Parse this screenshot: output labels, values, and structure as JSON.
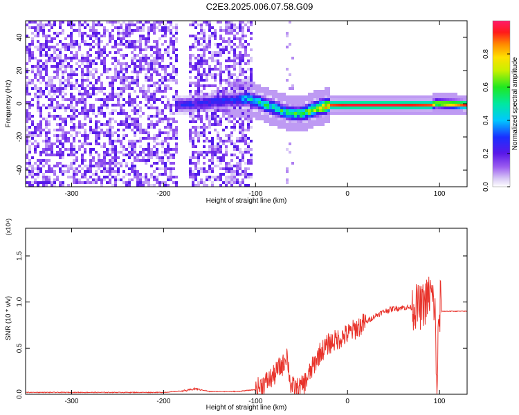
{
  "title": "C2E3.2025.006.07.58.G09",
  "chart_data": [
    {
      "type": "heatmap",
      "xlabel": "Height of straight line (km)",
      "ylabel": "Frequency (Hz)",
      "xlim": [
        -350,
        130
      ],
      "ylim": [
        -50,
        50
      ],
      "xticks": [
        -300,
        -200,
        -100,
        0,
        100
      ],
      "yticks": [
        -40,
        -20,
        0,
        20,
        40
      ],
      "colorbar": {
        "label": "Normalized spectral amplitude",
        "range": [
          0.0,
          1.0
        ],
        "ticks": [
          0.0,
          0.2,
          0.4,
          0.6,
          0.8
        ],
        "tick_labels": [
          "0.0",
          "0.2",
          "0.4",
          "0.6",
          "0.8"
        ]
      },
      "regions": [
        {
          "x": [
            -350,
            -105
          ],
          "y": [
            -50,
            50
          ],
          "amplitude": 0.15,
          "note": "broadband noise"
        },
        {
          "x": [
            -185,
            -175
          ],
          "y": [
            -50,
            50
          ],
          "amplitude": 0.0,
          "note": "gap"
        },
        {
          "x": [
            -70,
            -60
          ],
          "y": [
            -50,
            50
          ],
          "amplitude": 0.1,
          "note": "sparse band"
        }
      ],
      "signal_track": [
        {
          "x": -180,
          "f": 0,
          "amplitude": 0.25
        },
        {
          "x": -125,
          "f": 3,
          "amplitude": 0.3
        },
        {
          "x": -110,
          "f": 4,
          "amplitude": 0.45
        },
        {
          "x": -95,
          "f": 1,
          "amplitude": 0.5
        },
        {
          "x": -80,
          "f": -2,
          "amplitude": 0.55
        },
        {
          "x": -65,
          "f": -5,
          "amplitude": 0.5
        },
        {
          "x": -50,
          "f": -5,
          "amplitude": 0.6
        },
        {
          "x": -35,
          "f": -2,
          "amplitude": 0.75
        },
        {
          "x": -20,
          "f": 0,
          "amplitude": 0.9
        },
        {
          "x": 0,
          "f": 0,
          "amplitude": 0.95
        },
        {
          "x": 50,
          "f": 0,
          "amplitude": 0.95
        },
        {
          "x": 90,
          "f": 0,
          "amplitude": 0.9
        },
        {
          "x": 95,
          "f": 1,
          "amplitude": 0.7
        },
        {
          "x": 130,
          "f": 0,
          "amplitude": 0.95
        }
      ]
    },
    {
      "type": "line",
      "xlabel": "Height of straight line (km)",
      "ylabel": "SNR (10 * v/v)",
      "y_multiplier": "(x10⁴)",
      "xlim": [
        -350,
        130
      ],
      "ylim": [
        0.0,
        1.8
      ],
      "xticks": [
        -300,
        -200,
        -100,
        0,
        100
      ],
      "yticks": [
        0.0,
        0.5,
        1.0,
        1.5
      ],
      "ytick_labels": [
        "0.0",
        "0.5",
        "1.0",
        "1.5"
      ],
      "line_color": "#e8322a",
      "series": [
        {
          "x": [
            -350,
            -300,
            -250,
            -200,
            -175,
            -165,
            -150,
            -120,
            -100,
            -90,
            -80,
            -75,
            -70,
            -66,
            -62,
            -60,
            -55,
            -50,
            -45,
            -40,
            -35,
            -30,
            -25,
            -20,
            -10,
            0,
            10,
            20,
            30,
            40,
            50,
            60,
            70,
            75,
            80,
            85,
            90,
            95,
            97,
            100,
            105,
            110,
            120,
            130
          ],
          "y": [
            0.02,
            0.02,
            0.02,
            0.02,
            0.04,
            0.06,
            0.03,
            0.03,
            0.05,
            0.12,
            0.2,
            0.28,
            0.32,
            0.45,
            0.1,
            0.08,
            0.06,
            0.08,
            0.15,
            0.25,
            0.35,
            0.45,
            0.5,
            0.55,
            0.6,
            0.65,
            0.72,
            0.78,
            0.85,
            0.9,
            0.93,
            0.94,
            0.94,
            0.95,
            0.94,
            1.0,
            1.1,
            0.95,
            0.05,
            0.9,
            0.9,
            0.9,
            0.9,
            0.9
          ]
        }
      ]
    }
  ]
}
